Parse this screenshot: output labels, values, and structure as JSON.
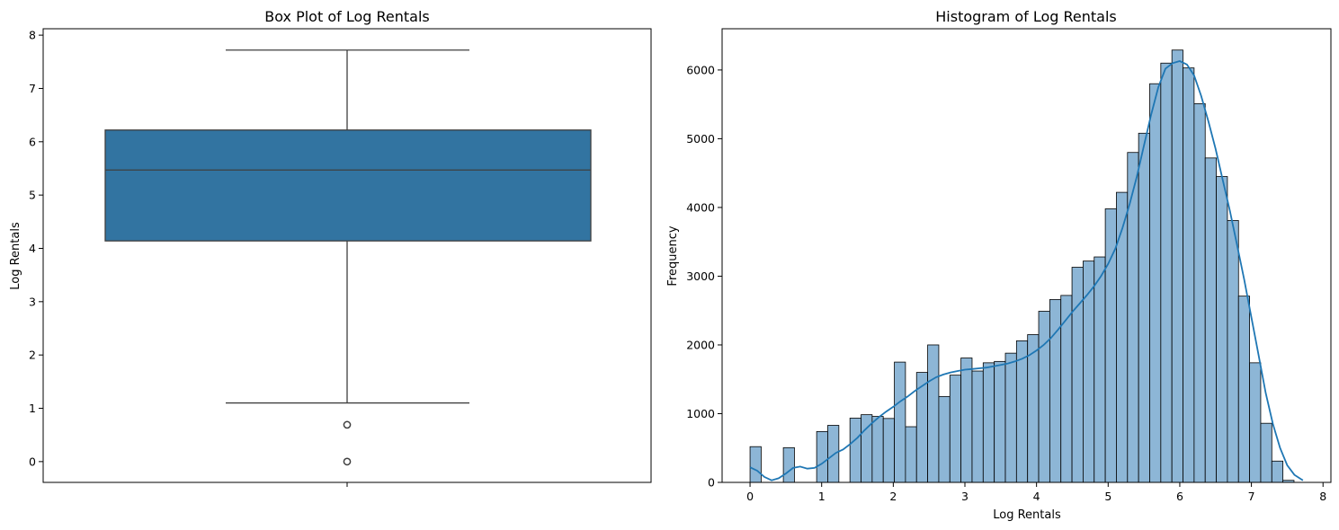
{
  "chart_data": [
    {
      "type": "box",
      "title": "Box Plot of Log Rentals",
      "xlabel": "",
      "ylabel": "Log Rentals",
      "ylim": [
        -0.39,
        8.12
      ],
      "yticks": [
        0,
        1,
        2,
        3,
        4,
        5,
        6,
        7,
        8
      ],
      "box": {
        "q1": 4.14,
        "median": 5.47,
        "q3": 6.22,
        "whisker_low": 1.1,
        "whisker_high": 7.72,
        "outliers": [
          0.69,
          0.0
        ]
      },
      "color": "#3274a1",
      "line_color": "#3f3f3f"
    },
    {
      "type": "histogram",
      "title": "Histogram of Log Rentals",
      "xlabel": "Log Rentals",
      "ylabel": "Frequency",
      "xlim": [
        -0.39,
        8.11
      ],
      "ylim": [
        0,
        6600
      ],
      "xticks": [
        0,
        1,
        2,
        3,
        4,
        5,
        6,
        7,
        8
      ],
      "yticks": [
        0,
        1000,
        2000,
        3000,
        4000,
        5000,
        6000
      ],
      "bin_start": 0,
      "bin_width": 0.155,
      "counts": [
        520,
        0,
        0,
        505,
        0,
        0,
        740,
        830,
        0,
        935,
        985,
        960,
        930,
        1750,
        810,
        1600,
        2000,
        1250,
        1560,
        1810,
        1620,
        1740,
        1760,
        1880,
        2060,
        2150,
        2490,
        2660,
        2720,
        3130,
        3220,
        3280,
        3980,
        4220,
        4800,
        5080,
        5800,
        6100,
        6290,
        6030,
        5510,
        4720,
        4450,
        3810,
        2710,
        1740,
        860,
        310,
        30
      ],
      "kde": {
        "x": [
          0.0,
          0.1,
          0.2,
          0.3,
          0.4,
          0.5,
          0.6,
          0.7,
          0.8,
          0.9,
          1.0,
          1.1,
          1.2,
          1.3,
          1.4,
          1.5,
          1.6,
          1.7,
          1.8,
          1.9,
          2.0,
          2.1,
          2.2,
          2.3,
          2.4,
          2.5,
          2.6,
          2.7,
          2.8,
          2.9,
          3.0,
          3.1,
          3.2,
          3.3,
          3.4,
          3.5,
          3.6,
          3.7,
          3.8,
          3.9,
          4.0,
          4.1,
          4.2,
          4.3,
          4.4,
          4.5,
          4.6,
          4.7,
          4.8,
          4.9,
          5.0,
          5.1,
          5.2,
          5.3,
          5.4,
          5.5,
          5.6,
          5.7,
          5.8,
          5.9,
          6.0,
          6.1,
          6.2,
          6.3,
          6.4,
          6.5,
          6.6,
          6.7,
          6.8,
          6.9,
          7.0,
          7.1,
          7.2,
          7.3,
          7.4,
          7.5,
          7.6,
          7.72
        ],
        "y": [
          220,
          170,
          80,
          30,
          60,
          130,
          210,
          230,
          200,
          210,
          270,
          350,
          430,
          480,
          560,
          650,
          760,
          860,
          950,
          1030,
          1100,
          1180,
          1250,
          1330,
          1400,
          1470,
          1530,
          1570,
          1600,
          1620,
          1640,
          1650,
          1660,
          1670,
          1690,
          1710,
          1730,
          1760,
          1800,
          1850,
          1920,
          2000,
          2100,
          2220,
          2350,
          2480,
          2600,
          2720,
          2850,
          3000,
          3180,
          3400,
          3700,
          4050,
          4450,
          4900,
          5350,
          5750,
          6020,
          6100,
          6130,
          6080,
          5920,
          5620,
          5250,
          4850,
          4400,
          3950,
          3450,
          2950,
          2400,
          1850,
          1300,
          850,
          500,
          250,
          110,
          30
        ]
      },
      "bar_color": "#8db6d6",
      "line_color": "#1f77b4"
    }
  ]
}
